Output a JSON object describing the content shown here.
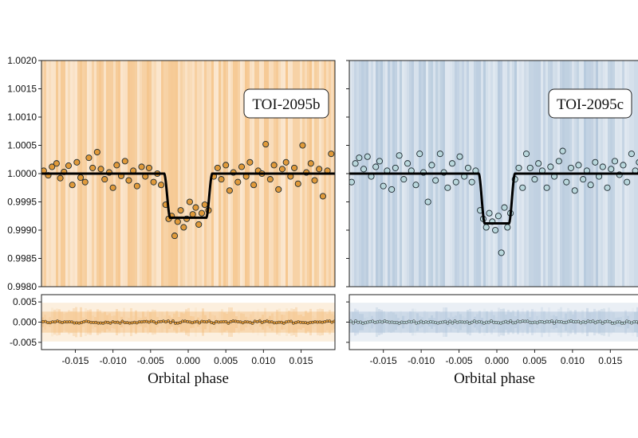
{
  "chart_data": [
    {
      "type": "scatter",
      "panel": "left",
      "label": "TOI-2095b",
      "xlabel": "Orbital phase",
      "xlim": [
        -0.0195,
        0.0195
      ],
      "ylim": [
        0.998,
        1.002
      ],
      "resid_ylim": [
        -0.0068,
        0.0068
      ],
      "yticks": [
        "0.9980",
        "0.9985",
        "0.9990",
        "0.9995",
        "1.0000",
        "1.0005",
        "1.0010",
        "1.0015",
        "1.0020"
      ],
      "resid_yticks": [
        "-0.005",
        "0.000",
        "0.005"
      ],
      "xticks": [
        "-0.015",
        "-0.010",
        "-0.005",
        "0.000",
        "0.005",
        "0.010",
        "0.015"
      ],
      "transit": {
        "depth": 0.00078,
        "t14": 0.0064,
        "ingress": 0.0008
      },
      "marker_color": "#e09a3a",
      "shade_color": "#f2b46a",
      "points": [
        [
          -0.0192,
          1.00005
        ],
        [
          -0.0186,
          0.99997
        ],
        [
          -0.0181,
          1.00012
        ],
        [
          -0.0175,
          1.00018
        ],
        [
          -0.017,
          0.99992
        ],
        [
          -0.0165,
          1.00003
        ],
        [
          -0.0159,
          1.00014
        ],
        [
          -0.0154,
          0.9998
        ],
        [
          -0.0148,
          1.0002
        ],
        [
          -0.0143,
          0.99993
        ],
        [
          -0.0137,
          0.99985
        ],
        [
          -0.0132,
          1.00028
        ],
        [
          -0.0127,
          1.0001
        ],
        [
          -0.0121,
          1.00038
        ],
        [
          -0.0116,
          1.00008
        ],
        [
          -0.0111,
          0.9999
        ],
        [
          -0.0105,
          1.00002
        ],
        [
          -0.01,
          0.99975
        ],
        [
          -0.0095,
          1.00015
        ],
        [
          -0.0089,
          0.99996
        ],
        [
          -0.0084,
          1.00022
        ],
        [
          -0.0079,
          0.99988
        ],
        [
          -0.0073,
          1.00005
        ],
        [
          -0.0068,
          0.99978
        ],
        [
          -0.0062,
          1.00012
        ],
        [
          -0.0057,
          0.99995
        ],
        [
          -0.0052,
          1.0001
        ],
        [
          -0.0046,
          0.99985
        ],
        [
          -0.0041,
          1.0
        ],
        [
          -0.0036,
          0.9998
        ],
        [
          -0.003,
          0.99945
        ],
        [
          -0.0026,
          0.9992
        ],
        [
          -0.0022,
          0.99925
        ],
        [
          -0.0018,
          0.9989
        ],
        [
          -0.0014,
          0.99915
        ],
        [
          -0.001,
          0.99935
        ],
        [
          -0.0006,
          0.99905
        ],
        [
          -0.0002,
          0.9992
        ],
        [
          0.0002,
          0.9995
        ],
        [
          0.0006,
          0.99928
        ],
        [
          0.001,
          0.9994
        ],
        [
          0.0014,
          0.9991
        ],
        [
          0.0018,
          0.9993
        ],
        [
          0.0022,
          0.99945
        ],
        [
          0.0027,
          0.99935
        ],
        [
          0.0034,
          0.99995
        ],
        [
          0.0039,
          1.0001
        ],
        [
          0.0044,
          0.9999
        ],
        [
          0.005,
          1.00015
        ],
        [
          0.0055,
          0.9997
        ],
        [
          0.006,
          1.00002
        ],
        [
          0.0066,
          0.99985
        ],
        [
          0.0071,
          1.00012
        ],
        [
          0.0077,
          0.99995
        ],
        [
          0.0082,
          1.0002
        ],
        [
          0.0087,
          0.9998
        ],
        [
          0.0093,
          1.00005
        ],
        [
          0.0098,
          1.0
        ],
        [
          0.0103,
          1.00052
        ],
        [
          0.0109,
          0.9999
        ],
        [
          0.0114,
          1.00015
        ],
        [
          0.012,
          0.99972
        ],
        [
          0.0125,
          1.00008
        ],
        [
          0.013,
          1.0002
        ],
        [
          0.0136,
          0.99995
        ],
        [
          0.0141,
          1.0001
        ],
        [
          0.0146,
          0.99982
        ],
        [
          0.0152,
          1.0005
        ],
        [
          0.0157,
          1.00002
        ],
        [
          0.0163,
          1.00018
        ],
        [
          0.0168,
          0.99988
        ],
        [
          0.0174,
          1.00008
        ],
        [
          0.0179,
          0.9996
        ],
        [
          0.0185,
          1.00005
        ],
        [
          0.019,
          1.00035
        ]
      ]
    },
    {
      "type": "scatter",
      "panel": "right",
      "label": "TOI-2095c",
      "xlabel": "Orbital phase",
      "xlim": [
        -0.0195,
        0.0195
      ],
      "ylim": [
        0.998,
        1.002
      ],
      "resid_ylim": [
        -0.0068,
        0.0068
      ],
      "yticks": [
        "0.9980",
        "0.9985",
        "0.9990",
        "0.9995",
        "1.0000",
        "1.0005",
        "1.0010",
        "1.0015",
        "1.0020"
      ],
      "resid_yticks": [
        "-0.005",
        "0.000",
        "0.005"
      ],
      "xticks": [
        "-0.015",
        "-0.010",
        "-0.005",
        "0.000",
        "0.005",
        "0.010",
        "0.015"
      ],
      "transit": {
        "depth": 0.00088,
        "t14": 0.0048,
        "ingress": 0.0008
      },
      "marker_color": "#b9d7dc",
      "shade_color": "#9fb8d2",
      "points": [
        [
          -0.0192,
          0.99985
        ],
        [
          -0.0187,
          1.00018
        ],
        [
          -0.0182,
          1.00028
        ],
        [
          -0.0176,
          1.00008
        ],
        [
          -0.0171,
          1.0003
        ],
        [
          -0.0166,
          0.99995
        ],
        [
          -0.016,
          1.00012
        ],
        [
          -0.0155,
          1.00022
        ],
        [
          -0.015,
          0.99978
        ],
        [
          -0.0145,
          1.00005
        ],
        [
          -0.0139,
          0.99972
        ],
        [
          -0.0134,
          1.0001
        ],
        [
          -0.0129,
          1.00032
        ],
        [
          -0.0123,
          0.9999
        ],
        [
          -0.0118,
          1.00018
        ],
        [
          -0.0113,
          1.00005
        ],
        [
          -0.0107,
          0.9998
        ],
        [
          -0.0102,
          1.00035
        ],
        [
          -0.0097,
          1.00002
        ],
        [
          -0.0091,
          0.9995
        ],
        [
          -0.0086,
          1.00015
        ],
        [
          -0.0081,
          0.99988
        ],
        [
          -0.0075,
          1.00035
        ],
        [
          -0.007,
          1.00002
        ],
        [
          -0.0065,
          0.99975
        ],
        [
          -0.0059,
          1.00018
        ],
        [
          -0.0054,
          0.99985
        ],
        [
          -0.0049,
          1.0003
        ],
        [
          -0.0043,
          0.99995
        ],
        [
          -0.0038,
          1.0001
        ],
        [
          -0.0033,
          0.99985
        ],
        [
          -0.0028,
          1.00005
        ],
        [
          -0.0022,
          0.99935
        ],
        [
          -0.0018,
          0.9992
        ],
        [
          -0.0014,
          0.99905
        ],
        [
          -0.001,
          0.9993
        ],
        [
          -0.0006,
          0.99915
        ],
        [
          -0.0002,
          0.999
        ],
        [
          0.0002,
          0.99925
        ],
        [
          0.0006,
          0.9986
        ],
        [
          0.001,
          0.9994
        ],
        [
          0.0014,
          0.99905
        ],
        [
          0.0018,
          0.9993
        ],
        [
          0.0024,
          0.9999
        ],
        [
          0.0029,
          1.0001
        ],
        [
          0.0034,
          0.99975
        ],
        [
          0.0039,
          1.00035
        ],
        [
          0.0044,
          1.0001
        ],
        [
          0.005,
          0.9999
        ],
        [
          0.0055,
          1.00018
        ],
        [
          0.006,
          1.00005
        ],
        [
          0.0066,
          0.99975
        ],
        [
          0.0071,
          1.00012
        ],
        [
          0.0076,
          0.99995
        ],
        [
          0.0082,
          1.00022
        ],
        [
          0.0087,
          1.0004
        ],
        [
          0.0092,
          0.99985
        ],
        [
          0.0098,
          1.0001
        ],
        [
          0.0103,
          0.9997
        ],
        [
          0.0108,
          1.00015
        ],
        [
          0.0114,
          0.9999
        ],
        [
          0.0119,
          1.00005
        ],
        [
          0.0124,
          0.9998
        ],
        [
          0.013,
          1.0002
        ],
        [
          0.0135,
          0.99995
        ],
        [
          0.014,
          1.00012
        ],
        [
          0.0146,
          0.99975
        ],
        [
          0.0151,
          1.00008
        ],
        [
          0.0156,
          1.00022
        ],
        [
          0.0162,
          0.99998
        ],
        [
          0.0167,
          1.00015
        ],
        [
          0.0172,
          0.99985
        ],
        [
          0.0178,
          1.00035
        ],
        [
          0.0183,
          1.00005
        ],
        [
          0.0188,
          1.0002
        ],
        [
          0.0193,
          0.99975
        ]
      ]
    }
  ]
}
